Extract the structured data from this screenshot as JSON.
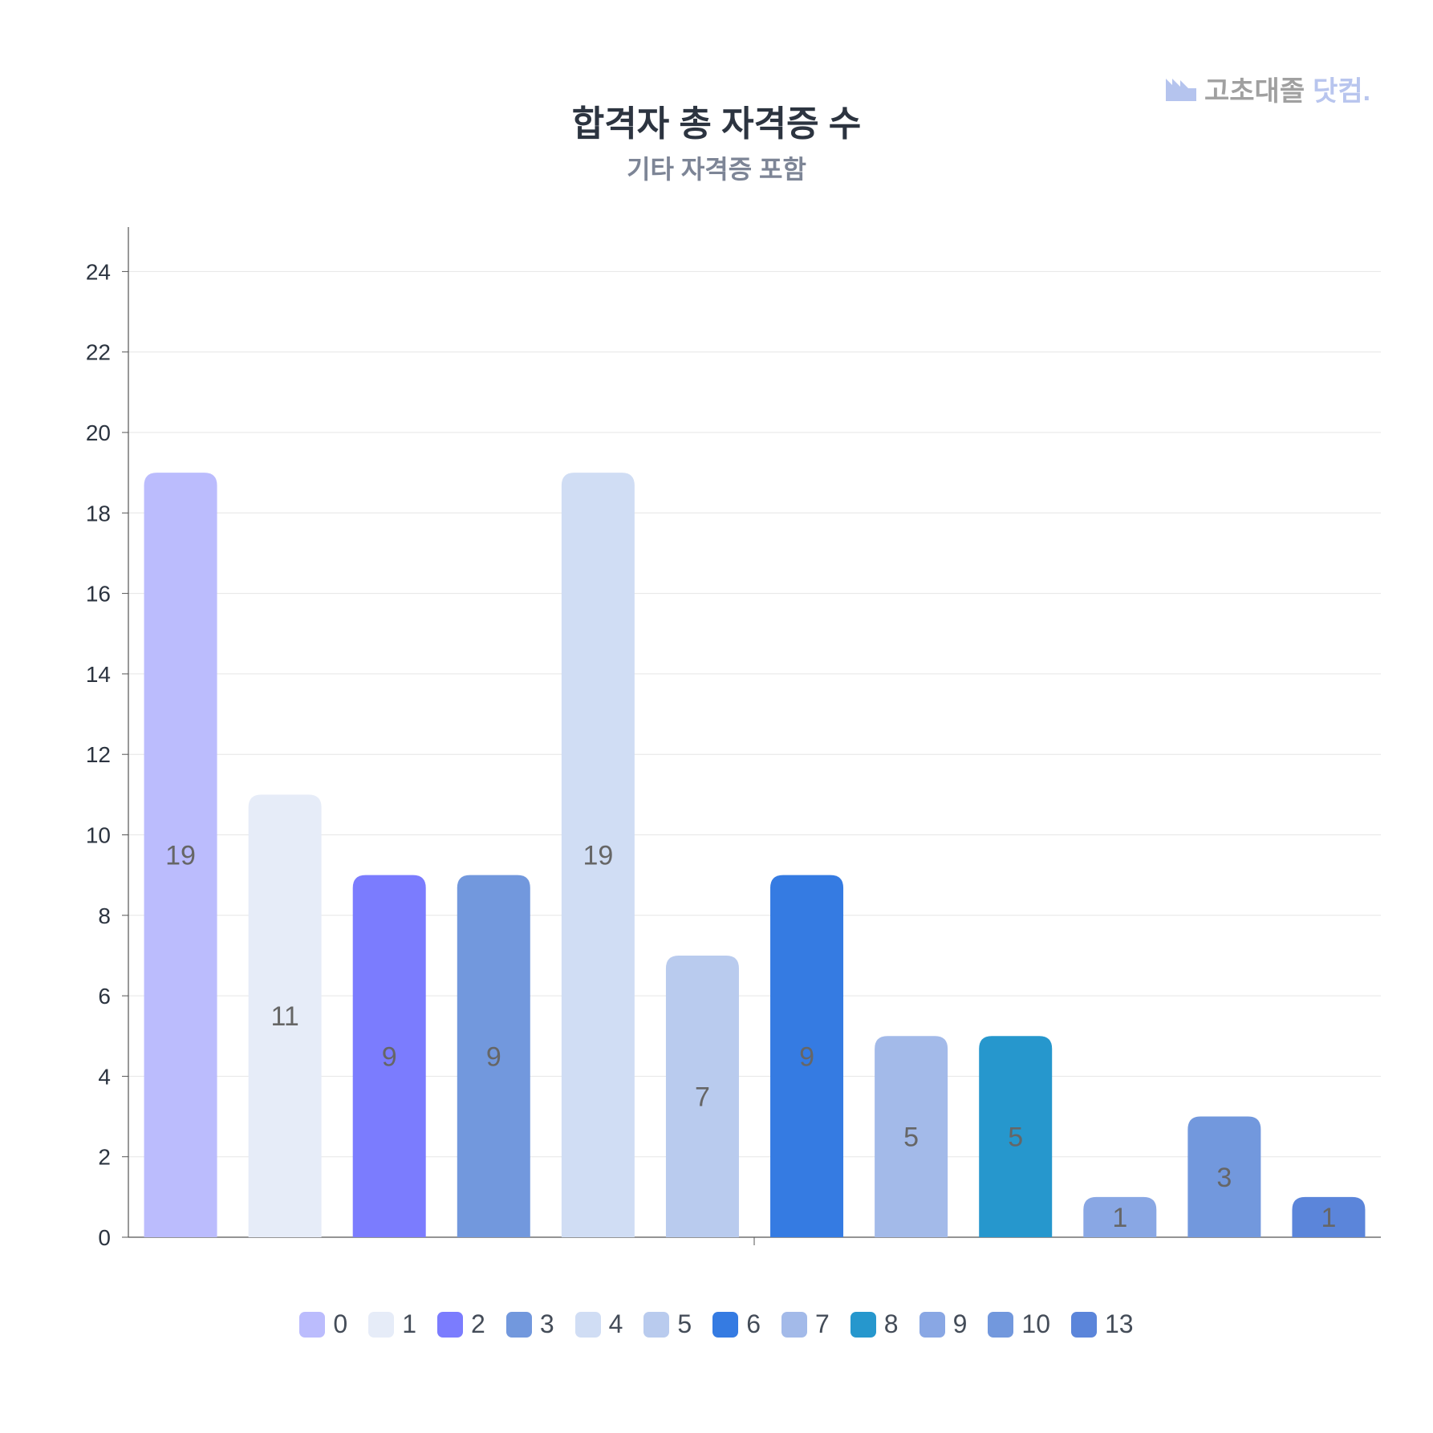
{
  "logo": {
    "text_main": "고초대졸",
    "text_accent": "닷컴."
  },
  "chart_data": {
    "type": "bar",
    "title": "합격자 총 자격증 수",
    "subtitle": "기타 자격증 포함",
    "categories": [
      "0",
      "1",
      "2",
      "3",
      "4",
      "5",
      "6",
      "7",
      "8",
      "9",
      "10",
      "13"
    ],
    "values": [
      19,
      11,
      9,
      9,
      19,
      7,
      9,
      5,
      5,
      1,
      3,
      1
    ],
    "colors": [
      "#bbbcfd",
      "#e6ecf8",
      "#7b7cfe",
      "#7298dd",
      "#d0ddf4",
      "#b9cbee",
      "#357be2",
      "#a3bae9",
      "#2697cd",
      "#89a7e4",
      "#7298dd",
      "#5b85da"
    ],
    "ylim": [
      0,
      25
    ],
    "yticks": [
      0,
      2,
      4,
      6,
      8,
      10,
      12,
      14,
      16,
      18,
      20,
      22,
      24
    ],
    "grid": true,
    "data_labels": true,
    "legend": "bottom"
  }
}
